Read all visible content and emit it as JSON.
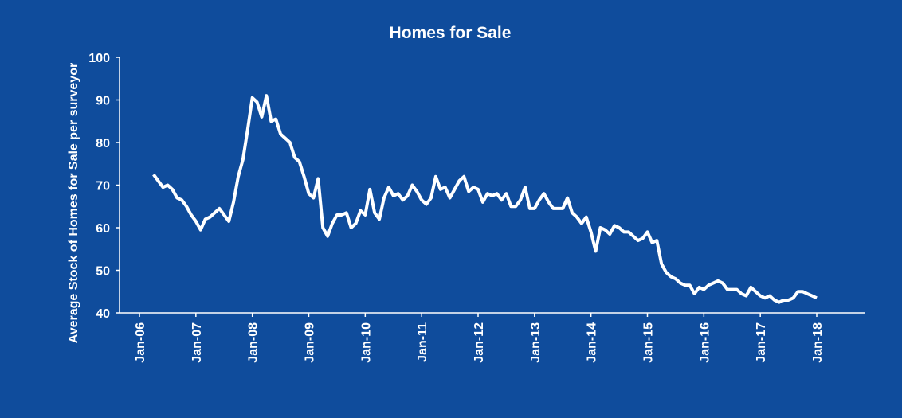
{
  "chart_data": {
    "type": "line",
    "title": "Homes for Sale",
    "y_label": "Average Stock of Homes for Sale per surveyor",
    "background": "#0f4c9c",
    "color": "#ffffff",
    "ylim": [
      40,
      100
    ],
    "yticks": [
      40,
      50,
      60,
      70,
      80,
      90,
      100
    ],
    "categories": [
      "Jan-06",
      null,
      null,
      null,
      null,
      null,
      null,
      null,
      null,
      null,
      null,
      null,
      "Jan-07",
      null,
      null,
      null,
      null,
      null,
      null,
      null,
      null,
      null,
      null,
      null,
      "Jan-08",
      null,
      null,
      null,
      null,
      null,
      null,
      null,
      null,
      null,
      null,
      null,
      "Jan-09",
      null,
      null,
      null,
      null,
      null,
      null,
      null,
      null,
      null,
      null,
      null,
      "Jan-10",
      null,
      null,
      null,
      null,
      null,
      null,
      null,
      null,
      null,
      null,
      null,
      "Jan-11",
      null,
      null,
      null,
      null,
      null,
      null,
      null,
      null,
      null,
      null,
      null,
      "Jan-12",
      null,
      null,
      null,
      null,
      null,
      null,
      null,
      null,
      null,
      null,
      null,
      "Jan-13",
      null,
      null,
      null,
      null,
      null,
      null,
      null,
      null,
      null,
      null,
      null,
      "Jan-14",
      null,
      null,
      null,
      null,
      null,
      null,
      null,
      null,
      null,
      null,
      null,
      "Jan-15",
      null,
      null,
      null,
      null,
      null,
      null,
      null,
      null,
      null,
      null,
      null,
      "Jan-16",
      null,
      null,
      null,
      null,
      null,
      null,
      null,
      null,
      null,
      null,
      null,
      "Jan-17",
      null,
      null,
      null,
      null,
      null,
      null,
      null,
      null,
      null,
      null,
      null,
      "Jan-18"
    ],
    "values": [
      null,
      null,
      null,
      72.5,
      71,
      69.5,
      70,
      69,
      67,
      66.5,
      65,
      63,
      61.5,
      59.5,
      62,
      62.5,
      63.5,
      64.5,
      63,
      61.5,
      66,
      72,
      76,
      83,
      90.5,
      89.5,
      86,
      91,
      85,
      85.5,
      82,
      81,
      80,
      76.5,
      75.5,
      72,
      68,
      67,
      71.5,
      60,
      58,
      61,
      63,
      63,
      63.5,
      60,
      61,
      64,
      63,
      69,
      63.5,
      62,
      67,
      69.5,
      67.5,
      68,
      66.5,
      67.5,
      70,
      68.5,
      66.5,
      65.5,
      67,
      72,
      69,
      69.5,
      67,
      69,
      71,
      72,
      68.5,
      69.5,
      69,
      66,
      68,
      67.5,
      68,
      66.5,
      68,
      65,
      65,
      66.5,
      69.5,
      64.5,
      64.5,
      66.5,
      68,
      66,
      64.5,
      64.5,
      64.5,
      67,
      63.5,
      62.5,
      61,
      62.5,
      59,
      54.5,
      60,
      59.5,
      58.5,
      60.5,
      60,
      59,
      59,
      58,
      57,
      57.5,
      59,
      56.5,
      57,
      51.5,
      49.5,
      48.5,
      48,
      47,
      46.5,
      46.5,
      44.5,
      46,
      45.5,
      46.5,
      47,
      47.5,
      47,
      45.5,
      45.5,
      45.5,
      44.5,
      44,
      46,
      45,
      44,
      43.5,
      44,
      43,
      42.5,
      43,
      43,
      43.5,
      45,
      45,
      44.5,
      44,
      43.5
    ]
  }
}
